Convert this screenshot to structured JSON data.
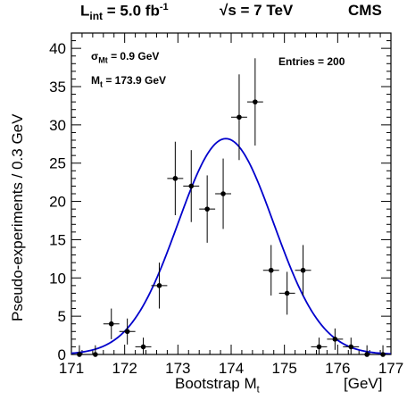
{
  "header": {
    "lumi_prefix": "L",
    "lumi_sub": "int",
    "lumi_value": " = 5.0 fb",
    "lumi_exp": "-1",
    "sqrt_s": "√s = 7 TeV",
    "experiment": "CMS"
  },
  "info": {
    "sigma_symbol": "σ",
    "sigma_sub": "Mt",
    "sigma_value": "=  0.9 GeV",
    "mass_symbol": "M",
    "mass_sub": "t",
    "mass_value": "=   173.9 GeV",
    "entries": "Entries =  200"
  },
  "chart_data": {
    "type": "scatter",
    "title": "",
    "xlabel": "Bootstrap M",
    "xlabel_sub": "t",
    "xunit": "[GeV]",
    "ylabel": "Pseudo-experiments / 0.3 GeV",
    "xlim": [
      171,
      177
    ],
    "ylim": [
      0,
      42
    ],
    "x_ticks": [
      171,
      172,
      173,
      174,
      175,
      176,
      177
    ],
    "y_ticks": [
      0,
      5,
      10,
      15,
      20,
      25,
      30,
      35,
      40
    ],
    "bin_width": 0.3,
    "grid": false,
    "series": [
      {
        "type": "points_with_errors",
        "x": [
          171.15,
          171.45,
          171.75,
          172.05,
          172.35,
          172.65,
          172.95,
          173.25,
          173.55,
          173.85,
          174.15,
          174.45,
          174.75,
          175.05,
          175.35,
          175.65,
          175.95,
          176.25,
          176.55,
          176.85
        ],
        "values": [
          0,
          0,
          4,
          3,
          1,
          9,
          23,
          22,
          19,
          21,
          31,
          33,
          11,
          8,
          11,
          1,
          2,
          1,
          0,
          0
        ],
        "yerr": [
          1.2,
          1.2,
          2,
          1.7,
          1.2,
          3,
          4.8,
          4.7,
          4.4,
          4.6,
          5.6,
          5.7,
          3.3,
          2.8,
          3.3,
          1.2,
          1.4,
          1.2,
          1.2,
          1.2
        ]
      },
      {
        "type": "gaussian_fit",
        "color": "#0000cc",
        "mean": 173.9,
        "sigma": 0.9,
        "amplitude": 28.2
      }
    ]
  }
}
